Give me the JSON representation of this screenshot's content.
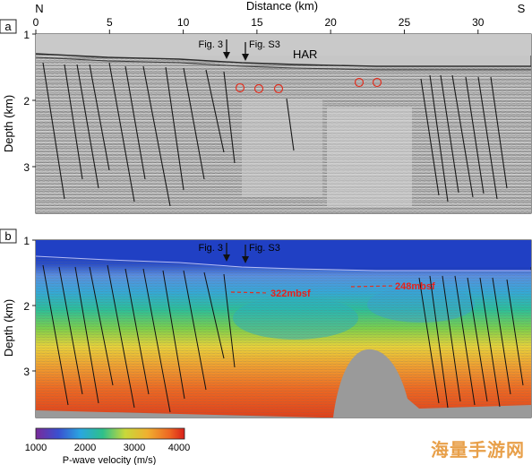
{
  "figure": {
    "top_axis": {
      "label": "Distance (km)",
      "ticks": [
        "0",
        "5",
        "10",
        "15",
        "20",
        "25",
        "30"
      ],
      "north": "N",
      "south": "S"
    },
    "panel_a": {
      "tag": "a",
      "ylabel": "Depth (km)",
      "yticks": [
        "1",
        "2",
        "3"
      ],
      "fig3_label": "Fig. 3",
      "figs3_label": "Fig. S3",
      "har_label": "HAR"
    },
    "panel_b": {
      "tag": "b",
      "ylabel": "Depth (km)",
      "yticks": [
        "1",
        "2",
        "3"
      ],
      "fig3_label": "Fig. 3",
      "figs3_label": "Fig. S3",
      "annotation_1": "322mbsf",
      "annotation_2": "248mbsf"
    },
    "colorbar": {
      "ticks": [
        "1000",
        "2000",
        "3000",
        "4000"
      ],
      "label": "P-wave velocity (m/s)"
    },
    "watermark": "海量手游网"
  }
}
